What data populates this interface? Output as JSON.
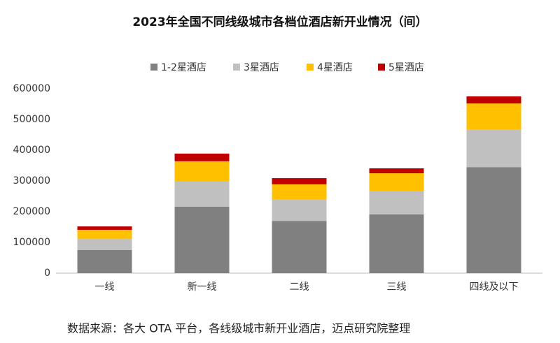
{
  "chart_data": {
    "type": "stacked-bar",
    "title": "2023年全国不同线级城市各档位酒店新开业情况（间）",
    "categories": [
      "一线",
      "新一线",
      "二线",
      "三线",
      "四线及以下"
    ],
    "series": [
      {
        "name": "1-2星酒店",
        "color": "#808080",
        "values": [
          75000,
          216000,
          170000,
          191000,
          345000
        ]
      },
      {
        "name": "3星酒店",
        "color": "#c0c0c0",
        "values": [
          36000,
          84000,
          69000,
          77000,
          123000
        ]
      },
      {
        "name": "4星酒店",
        "color": "#ffc000",
        "values": [
          30000,
          64000,
          50000,
          57000,
          84000
        ]
      },
      {
        "name": "5星酒店",
        "color": "#c00000",
        "values": [
          11000,
          25000,
          20000,
          16000,
          23000
        ]
      }
    ],
    "ylim": [
      0,
      600000
    ],
    "yticks": [
      0,
      100000,
      200000,
      300000,
      400000,
      500000,
      600000
    ],
    "grid": false,
    "legend": "top",
    "source": "数据来源：各大 OTA 平台，各线级城市新开业酒店，迈点研究院整理"
  }
}
